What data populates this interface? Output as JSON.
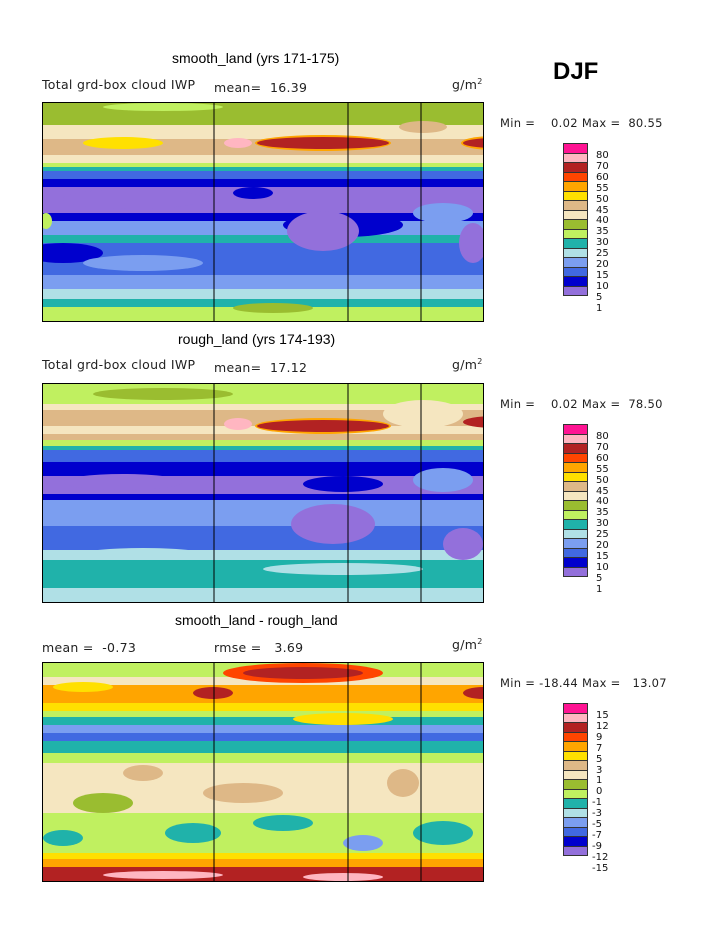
{
  "season": "DJF",
  "palette": [
    "#9370DB",
    "#0000CD",
    "#4169E1",
    "#7B9EF0",
    "#B0E0E6",
    "#20B2AA",
    "#C0F060",
    "#9ABD30",
    "#F5E6C0",
    "#DEB887",
    "#FFE000",
    "#FFA500",
    "#FF4500",
    "#B22222",
    "#FFB6C1",
    "#FF1493"
  ],
  "chart_data": [
    {
      "type": "heatmap",
      "title": "smooth_land (yrs 171-175)",
      "variable": "Total grd-box cloud IWP",
      "mean_label": "mean=",
      "mean": "16.39",
      "units": "g/m",
      "units_exp": "2",
      "min_label": "Min =",
      "min": "0.02",
      "max_label": "Max =",
      "max": "80.55",
      "levels": [
        "80",
        "70",
        "60",
        "55",
        "50",
        "45",
        "40",
        "35",
        "30",
        "25",
        "20",
        "15",
        "10",
        "5",
        "1"
      ]
    },
    {
      "type": "heatmap",
      "title": "rough_land (yrs 174-193)",
      "variable": "Total grd-box cloud IWP",
      "mean_label": "mean=",
      "mean": "17.12",
      "units": "g/m",
      "units_exp": "2",
      "min_label": "Min =",
      "min": "0.02",
      "max_label": "Max =",
      "max": "78.50",
      "levels": [
        "80",
        "70",
        "60",
        "55",
        "50",
        "45",
        "40",
        "35",
        "30",
        "25",
        "20",
        "15",
        "10",
        "5",
        "1"
      ]
    },
    {
      "type": "heatmap",
      "title": "smooth_land - rough_land",
      "mean_label": "mean =",
      "mean": "-0.73",
      "rmse_label": "rmse =",
      "rmse": "3.69",
      "units": "g/m",
      "units_exp": "2",
      "min_label": "Min =",
      "min": "-18.44",
      "max_label": "Max =",
      "max": "13.07",
      "levels": [
        "15",
        "12",
        "9",
        "7",
        "5",
        "3",
        "1",
        "0",
        "-1",
        "-3",
        "-5",
        "-7",
        "-9",
        "-12",
        "-15"
      ]
    }
  ]
}
